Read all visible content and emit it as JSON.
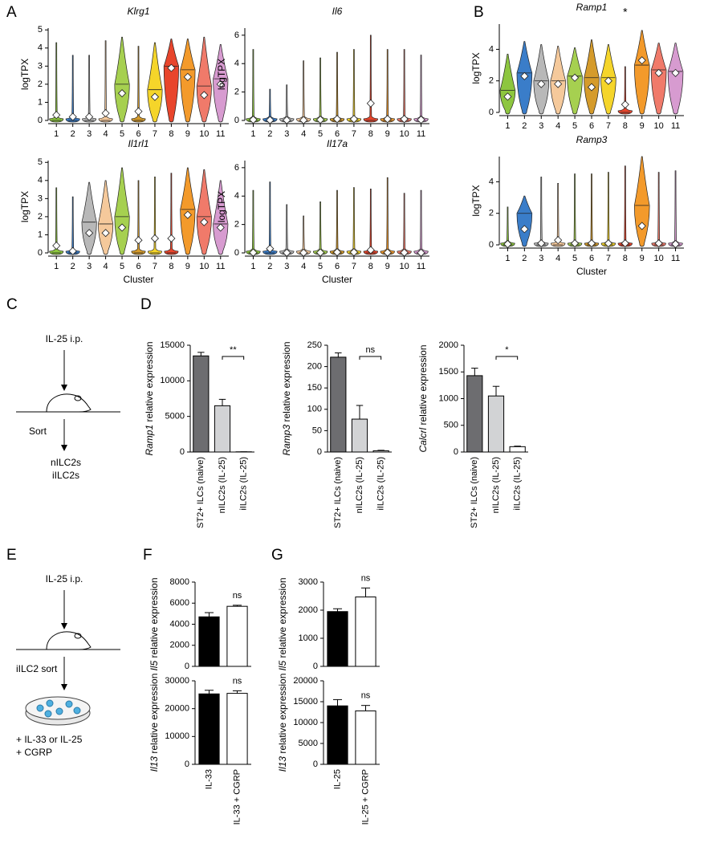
{
  "panels": {
    "A": "A",
    "B": "B",
    "C": "C",
    "D": "D",
    "E": "E",
    "F": "F",
    "G": "G"
  },
  "diagram_c": {
    "step1": "IL-25 i.p.",
    "step2": "Sort",
    "out1": "nILC2s",
    "out2": "iILC2s"
  },
  "diagram_e": {
    "step1": "IL-25 i.p.",
    "step2": "iILC2 sort",
    "out1": "+ IL-33 or IL-25",
    "out2": "+ CGRP"
  },
  "chart_data": [
    {
      "type": "violin",
      "title": "Klrg1",
      "ylabel": "logTPX",
      "categories": [
        "1",
        "2",
        "3",
        "4",
        "5",
        "6",
        "7",
        "8",
        "9",
        "10",
        "11"
      ],
      "colors": [
        "#8dc63f",
        "#3a7dc9",
        "#b8b8b8",
        "#f5c99b",
        "#a6d050",
        "#d59b2b",
        "#f5d52a",
        "#e8452c",
        "#f39a2b",
        "#f07a6a",
        "#d79bd0"
      ],
      "max": [
        4.3,
        3.6,
        3.6,
        4.4,
        4.6,
        4.1,
        4.3,
        4.5,
        4.5,
        4.6,
        4.2
      ],
      "medians": [
        0,
        0,
        0,
        0,
        2.0,
        0,
        1.7,
        3.0,
        2.8,
        1.9,
        2.3
      ],
      "means": [
        0.3,
        0.2,
        0.2,
        0.4,
        1.5,
        0.5,
        1.3,
        2.9,
        2.4,
        1.4,
        2.0
      ],
      "ylim": [
        0,
        5.1
      ],
      "yticks": [
        0,
        1,
        2,
        3,
        4,
        5
      ]
    },
    {
      "type": "violin",
      "title": "Il6",
      "ylabel": "logTPX",
      "categories": [
        "1",
        "2",
        "3",
        "4",
        "5",
        "6",
        "7",
        "8",
        "9",
        "10",
        "11"
      ],
      "colors": [
        "#8dc63f",
        "#3a7dc9",
        "#b8b8b8",
        "#f5c99b",
        "#a6d050",
        "#d59b2b",
        "#f5d52a",
        "#e8452c",
        "#f39a2b",
        "#f07a6a",
        "#d79bd0"
      ],
      "max": [
        5.0,
        2.2,
        2.5,
        4.2,
        4.4,
        4.8,
        5.0,
        6.0,
        5.0,
        5.0,
        4.6
      ],
      "medians": [
        0,
        0,
        0,
        0,
        0,
        0,
        0,
        0,
        0,
        0,
        0
      ],
      "means": [
        0.05,
        0.02,
        0.02,
        0.02,
        0.05,
        0.1,
        0.1,
        1.2,
        0.1,
        0.1,
        0.05
      ],
      "ylim": [
        0,
        6.5
      ],
      "yticks": [
        0,
        2,
        4,
        6
      ]
    },
    {
      "type": "violin",
      "title": "Il1rl1",
      "ylabel": "logTPX",
      "xlabel": "Cluster",
      "categories": [
        "1",
        "2",
        "3",
        "4",
        "5",
        "6",
        "7",
        "8",
        "9",
        "10",
        "11"
      ],
      "colors": [
        "#8dc63f",
        "#3a7dc9",
        "#b8b8b8",
        "#f5c99b",
        "#a6d050",
        "#d59b2b",
        "#f5d52a",
        "#e8452c",
        "#f39a2b",
        "#f07a6a",
        "#d79bd0"
      ],
      "max": [
        3.6,
        3.1,
        3.9,
        4.0,
        4.7,
        4.0,
        4.2,
        4.4,
        4.7,
        4.6,
        4.0
      ],
      "medians": [
        0,
        0,
        1.7,
        1.6,
        2.0,
        0,
        0,
        0,
        2.4,
        2.0,
        1.6
      ],
      "means": [
        0.4,
        0.1,
        1.1,
        1.1,
        1.4,
        0.7,
        0.8,
        0.8,
        2.1,
        1.7,
        1.4
      ],
      "ylim": [
        0,
        5.1
      ],
      "yticks": [
        0,
        1,
        2,
        3,
        4,
        5
      ]
    },
    {
      "type": "violin",
      "title": "Il17a",
      "ylabel": "logTPX",
      "xlabel": "Cluster",
      "categories": [
        "1",
        "2",
        "3",
        "4",
        "5",
        "6",
        "7",
        "8",
        "9",
        "10",
        "11"
      ],
      "colors": [
        "#8dc63f",
        "#3a7dc9",
        "#b8b8b8",
        "#f5c99b",
        "#a6d050",
        "#d59b2b",
        "#f5d52a",
        "#e8452c",
        "#f39a2b",
        "#f07a6a",
        "#d79bd0"
      ],
      "max": [
        4.4,
        5.0,
        3.4,
        2.6,
        3.6,
        4.4,
        4.6,
        4.5,
        5.3,
        4.2,
        4.4
      ],
      "medians": [
        0,
        0,
        0,
        0,
        0,
        0,
        0,
        0,
        0,
        0,
        0
      ],
      "means": [
        0.02,
        0.3,
        0.01,
        0.01,
        0.02,
        0.05,
        0.05,
        0.2,
        0.02,
        0.02,
        0.01
      ],
      "ylim": [
        0,
        6.5
      ],
      "yticks": [
        0,
        2,
        4,
        6
      ]
    },
    {
      "type": "violin",
      "title": "Ramp1",
      "ylabel": "logTPX",
      "categories": [
        "1",
        "2",
        "3",
        "4",
        "5",
        "6",
        "7",
        "8",
        "9",
        "10",
        "11"
      ],
      "colors": [
        "#8dc63f",
        "#3a7dc9",
        "#b8b8b8",
        "#f5c99b",
        "#a6d050",
        "#d59b2b",
        "#f5d52a",
        "#e8452c",
        "#f39a2b",
        "#f07a6a",
        "#d79bd0"
      ],
      "max": [
        3.7,
        4.5,
        4.3,
        4.2,
        4.1,
        4.6,
        4.3,
        2.9,
        5.2,
        4.4,
        4.4
      ],
      "medians": [
        1.4,
        2.5,
        2.0,
        2.0,
        2.3,
        2.2,
        2.2,
        0,
        3.0,
        2.7,
        2.6
      ],
      "means": [
        1.0,
        2.3,
        1.8,
        1.8,
        2.2,
        1.6,
        2.0,
        0.5,
        3.3,
        2.5,
        2.5
      ],
      "annotation": {
        "text": "*",
        "category": "8"
      },
      "ylim": [
        0,
        5.6
      ],
      "yticks": [
        0,
        2,
        4
      ]
    },
    {
      "type": "violin",
      "title": "Ramp3",
      "ylabel": "logTPX",
      "xlabel": "Cluster",
      "categories": [
        "1",
        "2",
        "3",
        "4",
        "5",
        "6",
        "7",
        "8",
        "9",
        "10",
        "11"
      ],
      "colors": [
        "#8dc63f",
        "#3a7dc9",
        "#b8b8b8",
        "#f5c99b",
        "#a6d050",
        "#d59b2b",
        "#f5d52a",
        "#e8452c",
        "#f39a2b",
        "#f07a6a",
        "#d79bd0"
      ],
      "max": [
        2.4,
        3.1,
        4.3,
        3.9,
        4.5,
        4.5,
        4.6,
        5.0,
        5.6,
        4.6,
        4.7
      ],
      "medians": [
        0,
        2.0,
        0,
        0,
        0,
        0,
        0,
        0,
        2.5,
        0,
        0
      ],
      "means": [
        0.05,
        1.0,
        0.1,
        0.3,
        0.1,
        0.1,
        0.1,
        0.1,
        1.2,
        0.1,
        0.05
      ],
      "ylim": [
        0,
        5.6
      ],
      "yticks": [
        0,
        2,
        4
      ]
    },
    {
      "type": "bar",
      "ylabel_gene": "Ramp1",
      "ylabel": "relative expression",
      "categories": [
        "ST2+ ILCs (naive)",
        "nILC2s (IL-25)",
        "iILC2s (IL-25)"
      ],
      "colors": [
        "#6d6d70",
        "#d2d3d5",
        "#ffffff"
      ],
      "values": [
        13500,
        6500,
        30
      ],
      "errors": [
        500,
        900,
        0
      ],
      "significance": "**",
      "bracket": true,
      "ylim": [
        0,
        15000
      ],
      "yticks": [
        0,
        5000,
        10000,
        15000
      ]
    },
    {
      "type": "bar",
      "ylabel_gene": "Ramp3",
      "ylabel": "relative expression",
      "categories": [
        "ST2+ ILCs (naive)",
        "nILC2s (IL-25)",
        "iILC2s (IL-25)"
      ],
      "colors": [
        "#6d6d70",
        "#d2d3d5",
        "#ffffff"
      ],
      "values": [
        222,
        77,
        3
      ],
      "errors": [
        10,
        32,
        1
      ],
      "significance": "ns",
      "bracket": true,
      "ylim": [
        0,
        250
      ],
      "yticks": [
        0,
        50,
        100,
        150,
        200,
        250
      ]
    },
    {
      "type": "bar",
      "ylabel_gene": "Calcrl",
      "ylabel": "relative expression",
      "categories": [
        "ST2+ ILCs (naive)",
        "nILC2s (IL-25)",
        "iILC2s (IL-25)"
      ],
      "colors": [
        "#6d6d70",
        "#d2d3d5",
        "#ffffff"
      ],
      "values": [
        1430,
        1050,
        100
      ],
      "errors": [
        140,
        180,
        10
      ],
      "significance": "*",
      "bracket": true,
      "ylim": [
        0,
        2000
      ],
      "yticks": [
        0,
        500,
        1000,
        1500,
        2000
      ]
    },
    {
      "type": "bar",
      "ylabel_gene": "Il5",
      "ylabel": "relative expression",
      "colors": [
        "#000000",
        "#ffffff"
      ],
      "values": [
        4700,
        5700
      ],
      "errors": [
        400,
        100
      ],
      "significance": "ns",
      "bracket": false,
      "ylim": [
        0,
        8000
      ],
      "yticks": [
        0,
        2000,
        4000,
        6000,
        8000
      ]
    },
    {
      "type": "bar",
      "ylabel_gene": "Il13",
      "ylabel": "relative expression",
      "categories": [
        "IL-33",
        "IL-33 + CGRP"
      ],
      "colors": [
        "#000000",
        "#ffffff"
      ],
      "values": [
        25300,
        25500
      ],
      "errors": [
        1300,
        900
      ],
      "significance": "ns",
      "bracket": false,
      "ylim": [
        0,
        30000
      ],
      "yticks": [
        0,
        10000,
        20000,
        30000
      ]
    },
    {
      "type": "bar",
      "ylabel_gene": "Il5",
      "ylabel": "relative expression",
      "colors": [
        "#000000",
        "#ffffff"
      ],
      "values": [
        1950,
        2470
      ],
      "errors": [
        100,
        320
      ],
      "significance": "ns",
      "bracket": false,
      "ylim": [
        0,
        3000
      ],
      "yticks": [
        0,
        1000,
        2000,
        3000
      ]
    },
    {
      "type": "bar",
      "ylabel_gene": "Il13",
      "ylabel": "relative expression",
      "categories": [
        "IL-25",
        "IL-25 + CGRP"
      ],
      "colors": [
        "#000000",
        "#ffffff"
      ],
      "values": [
        14000,
        12800
      ],
      "errors": [
        1500,
        1300
      ],
      "significance": "ns",
      "bracket": false,
      "ylim": [
        0,
        20000
      ],
      "yticks": [
        0,
        5000,
        10000,
        15000,
        20000
      ]
    }
  ]
}
